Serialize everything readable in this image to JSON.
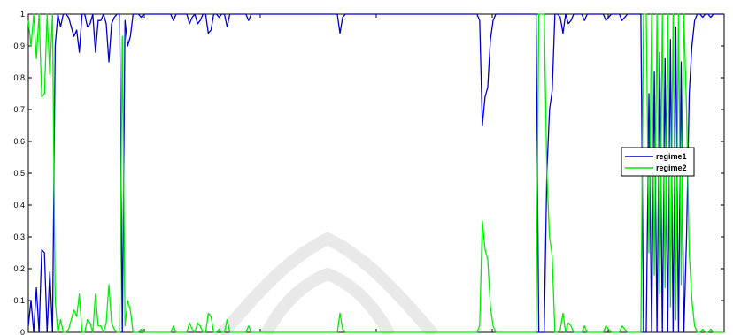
{
  "chart_data": {
    "type": "line",
    "title": "",
    "xlabel": "",
    "ylabel": "",
    "xlim": [
      0,
      300
    ],
    "ylim": [
      0,
      1
    ],
    "yticks": [
      "0",
      "0.1",
      "0.2",
      "0.3",
      "0.4",
      "0.5",
      "0.6",
      "0.7",
      "0.8",
      "0.9",
      "1"
    ],
    "grid": false,
    "legend_position": "right",
    "series": [
      {
        "name": "regime1",
        "color": "#0000cc",
        "values": [
          0.02,
          0.1,
          0.0,
          0.14,
          0.0,
          0.26,
          0.25,
          0.0,
          0.19,
          0.0,
          0.9,
          1.0,
          0.96,
          1.0,
          1.0,
          0.99,
          0.96,
          0.93,
          0.95,
          0.88,
          1.0,
          1.0,
          0.96,
          0.97,
          1.0,
          0.88,
          0.98,
          0.98,
          1.0,
          0.97,
          0.85,
          0.97,
          0.99,
          1.0,
          1.0,
          0.0,
          0.98,
          0.9,
          0.93,
          1.0,
          1.0,
          1.0,
          0.99,
          1.0,
          1.0,
          1.0,
          1.0,
          1.0,
          1.0,
          1.0,
          1.0,
          1.0,
          1.0,
          1.0,
          0.98,
          1.0,
          1.0,
          1.0,
          1.0,
          1.0,
          0.97,
          0.99,
          1.0,
          0.97,
          0.98,
          1.0,
          1.0,
          0.94,
          0.95,
          1.0,
          1.0,
          0.99,
          1.0,
          1.0,
          0.96,
          1.0,
          1.0,
          1.0,
          1.0,
          1.0,
          1.0,
          1.0,
          0.98,
          1.0,
          1.0,
          1.0,
          1.0,
          1.0,
          1.0,
          1.0,
          1.0,
          1.0,
          1.0,
          1.0,
          1.0,
          1.0,
          1.0,
          1.0,
          1.0,
          1.0,
          1.0,
          1.0,
          1.0,
          1.0,
          1.0,
          1.0,
          1.0,
          1.0,
          1.0,
          1.0,
          1.0,
          1.0,
          1.0,
          1.0,
          1.0,
          1.0,
          0.94,
          0.99,
          1.0,
          1.0,
          1.0,
          1.0,
          1.0,
          1.0,
          1.0,
          1.0,
          1.0,
          1.0,
          1.0,
          1.0,
          1.0,
          1.0,
          1.0,
          1.0,
          1.0,
          1.0,
          1.0,
          1.0,
          1.0,
          1.0,
          1.0,
          1.0,
          1.0,
          1.0,
          1.0,
          1.0,
          1.0,
          1.0,
          1.0,
          1.0,
          1.0,
          1.0,
          1.0,
          1.0,
          1.0,
          1.0,
          1.0,
          1.0,
          1.0,
          1.0,
          1.0,
          1.0,
          1.0,
          1.0,
          1.0,
          1.0,
          1.0,
          1.0,
          0.98,
          0.65,
          0.74,
          0.77,
          0.92,
          0.98,
          1.0,
          1.0,
          1.0,
          1.0,
          1.0,
          1.0,
          1.0,
          1.0,
          1.0,
          1.0,
          1.0,
          1.0,
          1.0,
          1.0,
          1.0,
          1.0,
          0.0,
          0.0,
          0.0,
          0.5,
          0.7,
          0.76,
          1.0,
          1.0,
          0.99,
          0.94,
          1.0,
          0.97,
          0.98,
          1.0,
          1.0,
          1.0,
          1.0,
          0.98,
          1.0,
          1.0,
          1.0,
          1.0,
          1.0,
          1.0,
          1.0,
          0.98,
          0.99,
          1.0,
          1.0,
          1.0,
          1.0,
          0.98,
          0.99,
          1.0,
          1.0,
          1.0,
          1.0,
          1.0,
          1.0,
          0.0,
          0.0,
          0.75,
          0.0,
          0.82,
          0.0,
          0.88,
          0.0,
          0.86,
          0.0,
          0.92,
          0.0,
          0.96,
          0.0,
          0.85,
          0.0,
          0.3,
          0.75,
          0.9,
          0.98,
          1.0,
          1.0,
          0.99,
          1.0,
          1.0,
          0.99,
          1.0,
          1.0,
          1.0,
          1.0,
          1.0
        ]
      },
      {
        "name": "regime2",
        "color": "#00ee00",
        "values": [
          0.98,
          0.9,
          1.0,
          0.86,
          1.0,
          0.74,
          0.75,
          1.0,
          0.81,
          1.0,
          0.1,
          0.0,
          0.04,
          0.0,
          0.0,
          0.01,
          0.04,
          0.07,
          0.05,
          0.12,
          0.0,
          0.0,
          0.04,
          0.03,
          0.0,
          0.12,
          0.02,
          0.02,
          0.0,
          0.03,
          0.15,
          0.03,
          0.01,
          0.0,
          0.0,
          0.93,
          0.02,
          0.1,
          0.07,
          0.0,
          0.0,
          0.0,
          0.01,
          0.0,
          0.0,
          0.0,
          0.0,
          0.0,
          0.0,
          0.0,
          0.0,
          0.0,
          0.0,
          0.0,
          0.02,
          0.0,
          0.0,
          0.0,
          0.0,
          0.0,
          0.03,
          0.01,
          0.0,
          0.03,
          0.02,
          0.0,
          0.0,
          0.06,
          0.05,
          0.0,
          0.0,
          0.01,
          0.0,
          0.0,
          0.04,
          0.0,
          0.0,
          0.0,
          0.0,
          0.0,
          0.0,
          0.0,
          0.02,
          0.0,
          0.0,
          0.0,
          0.0,
          0.0,
          0.0,
          0.0,
          0.0,
          0.0,
          0.0,
          0.0,
          0.0,
          0.0,
          0.0,
          0.0,
          0.0,
          0.0,
          0.0,
          0.0,
          0.0,
          0.0,
          0.0,
          0.0,
          0.0,
          0.0,
          0.0,
          0.0,
          0.0,
          0.0,
          0.0,
          0.0,
          0.0,
          0.0,
          0.06,
          0.01,
          0.0,
          0.0,
          0.0,
          0.0,
          0.0,
          0.0,
          0.0,
          0.0,
          0.0,
          0.0,
          0.0,
          0.0,
          0.0,
          0.0,
          0.0,
          0.0,
          0.0,
          0.0,
          0.0,
          0.0,
          0.0,
          0.0,
          0.0,
          0.0,
          0.0,
          0.0,
          0.0,
          0.0,
          0.0,
          0.0,
          0.0,
          0.0,
          0.0,
          0.0,
          0.0,
          0.0,
          0.0,
          0.0,
          0.0,
          0.0,
          0.0,
          0.0,
          0.0,
          0.0,
          0.0,
          0.0,
          0.0,
          0.0,
          0.0,
          0.0,
          0.02,
          0.35,
          0.26,
          0.23,
          0.08,
          0.02,
          0.0,
          0.0,
          0.0,
          0.0,
          0.0,
          0.0,
          0.0,
          0.0,
          0.0,
          0.0,
          0.0,
          0.0,
          0.0,
          0.0,
          0.0,
          0.0,
          1.0,
          1.0,
          1.0,
          0.5,
          0.3,
          0.24,
          0.0,
          0.0,
          0.01,
          0.06,
          0.0,
          0.03,
          0.02,
          0.0,
          0.0,
          0.0,
          0.0,
          0.02,
          0.0,
          0.0,
          0.0,
          0.0,
          0.0,
          0.0,
          0.0,
          0.02,
          0.01,
          0.0,
          0.0,
          0.0,
          0.0,
          0.02,
          0.01,
          0.0,
          0.0,
          0.0,
          0.0,
          0.0,
          0.0,
          1.0,
          1.0,
          0.25,
          1.0,
          0.18,
          1.0,
          0.12,
          1.0,
          0.14,
          1.0,
          0.08,
          1.0,
          0.04,
          1.0,
          0.15,
          1.0,
          0.7,
          0.25,
          0.1,
          0.02,
          0.0,
          0.0,
          0.01,
          0.0,
          0.0,
          0.01,
          0.0,
          0.0,
          0.0,
          0.0,
          0.0
        ]
      }
    ]
  }
}
